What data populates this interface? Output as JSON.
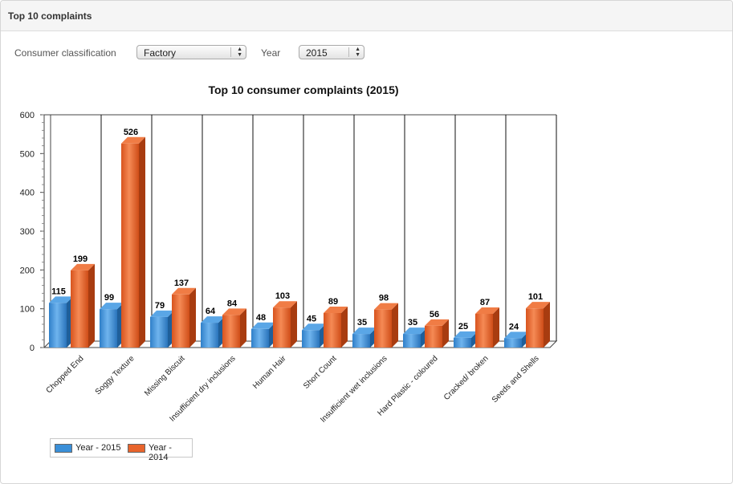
{
  "panel": {
    "title": "Top 10 complaints"
  },
  "filters": {
    "classification_label": "Consumer classification",
    "classification_value": "Factory",
    "year_label": "Year",
    "year_value": "2015"
  },
  "chart_data": {
    "type": "bar",
    "title": "Top 10 consumer complaints (2015)",
    "categories": [
      "Chopped End",
      "Soggy Texture",
      "Missing Biscuit",
      "Insufficient dry inclusions",
      "Human Hair",
      "Short Count",
      "Insufficient wet inclusions",
      "Hard Plastic - coloured",
      "Cracked/ broken",
      "Seeds and Shells"
    ],
    "series": [
      {
        "name": "Year - 2015",
        "color": "#3a8fd8",
        "values": [
          115,
          99,
          79,
          64,
          48,
          45,
          35,
          35,
          25,
          24
        ]
      },
      {
        "name": "Year - 2014",
        "color": "#e8642c",
        "values": [
          199,
          526,
          137,
          84,
          103,
          89,
          98,
          56,
          87,
          101
        ]
      }
    ],
    "ylim": [
      0,
      600
    ],
    "yticks": [
      0,
      100,
      200,
      300,
      400,
      500,
      600
    ],
    "xlabel": "",
    "ylabel": "",
    "legend_position": "bottom-left",
    "grid": "vertical"
  }
}
